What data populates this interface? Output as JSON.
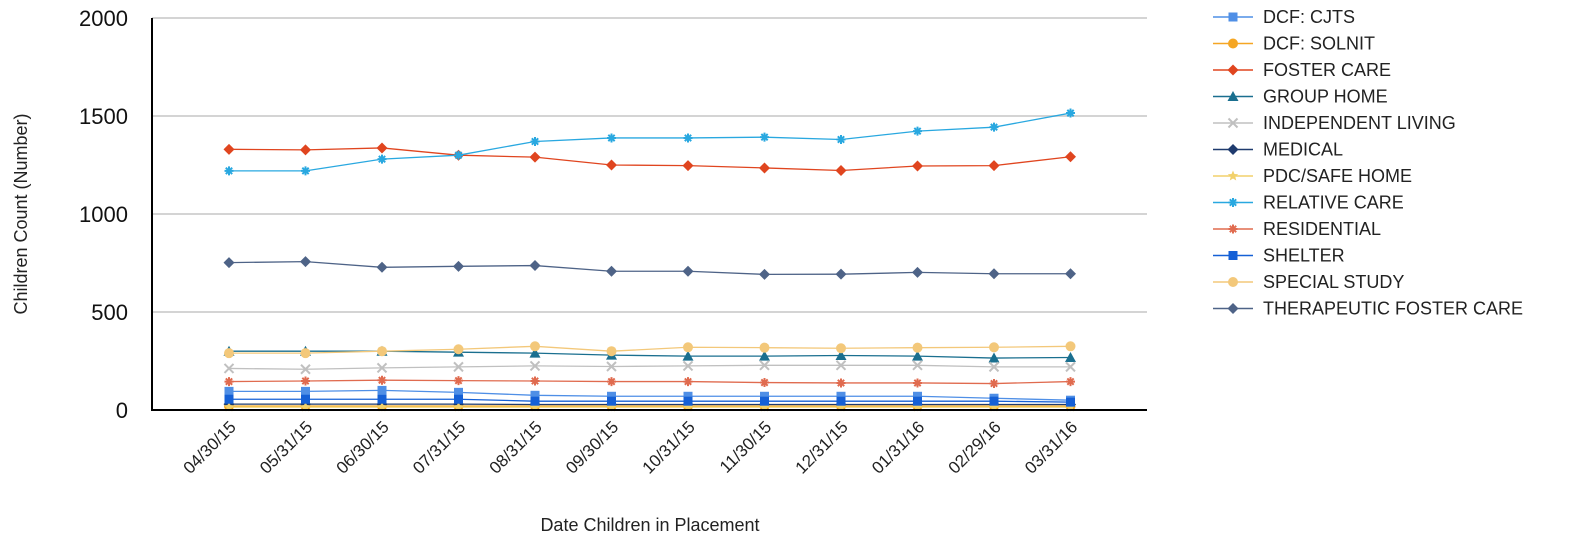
{
  "chart_data": {
    "type": "line",
    "xlabel": "Date Children in Placement",
    "ylabel": "Children Count (Number)",
    "ylim": [
      0,
      2000
    ],
    "yticks": [
      0,
      500,
      1000,
      1500,
      2000
    ],
    "grid": true,
    "legend_position": "right",
    "categories": [
      "04/30/15",
      "05/31/15",
      "06/30/15",
      "07/31/15",
      "08/31/15",
      "09/30/15",
      "10/31/15",
      "11/30/15",
      "12/31/15",
      "01/31/16",
      "02/29/16",
      "03/31/16"
    ],
    "series": [
      {
        "name": "DCF: CJTS",
        "color": "#4f8fe6",
        "marker": "square",
        "values": [
          95,
          95,
          100,
          90,
          75,
          70,
          70,
          70,
          70,
          70,
          60,
          50
        ]
      },
      {
        "name": "DCF: SOLNIT",
        "color": "#f5a623",
        "marker": "circle",
        "values": [
          20,
          20,
          20,
          20,
          20,
          20,
          20,
          20,
          20,
          20,
          20,
          20
        ]
      },
      {
        "name": "FOSTER CARE",
        "color": "#e0451f",
        "marker": "diamond",
        "values": [
          1330,
          1327,
          1337,
          1300,
          1290,
          1250,
          1247,
          1235,
          1222,
          1245,
          1247,
          1292
        ]
      },
      {
        "name": "GROUP HOME",
        "color": "#1a6f8f",
        "marker": "triangle",
        "values": [
          300,
          300,
          300,
          295,
          290,
          280,
          275,
          275,
          278,
          275,
          265,
          268
        ]
      },
      {
        "name": "INDEPENDENT LIVING",
        "color": "#c0c0c0",
        "marker": "x",
        "values": [
          212,
          208,
          215,
          220,
          225,
          222,
          225,
          228,
          228,
          228,
          220,
          220
        ]
      },
      {
        "name": "MEDICAL",
        "color": "#1f3b6e",
        "marker": "diamond",
        "values": [
          30,
          30,
          30,
          30,
          28,
          28,
          28,
          28,
          28,
          28,
          28,
          28
        ]
      },
      {
        "name": "PDC/SAFE HOME",
        "color": "#f2d16b",
        "marker": "star",
        "values": [
          15,
          15,
          15,
          15,
          15,
          15,
          15,
          15,
          15,
          15,
          15,
          15
        ]
      },
      {
        "name": "RELATIVE CARE",
        "color": "#29a8e0",
        "marker": "asterisk",
        "values": [
          1220,
          1220,
          1280,
          1300,
          1370,
          1388,
          1388,
          1392,
          1380,
          1423,
          1443,
          1515
        ]
      },
      {
        "name": "RESIDENTIAL",
        "color": "#e06b4f",
        "marker": "asterisk",
        "values": [
          145,
          148,
          152,
          150,
          148,
          145,
          145,
          140,
          138,
          138,
          135,
          145
        ]
      },
      {
        "name": "SHELTER",
        "color": "#1560d6",
        "marker": "square",
        "values": [
          55,
          55,
          55,
          55,
          45,
          45,
          45,
          45,
          45,
          45,
          45,
          40
        ]
      },
      {
        "name": "SPECIAL STUDY",
        "color": "#f3c87a",
        "marker": "circle",
        "values": [
          290,
          290,
          300,
          310,
          325,
          300,
          320,
          318,
          315,
          318,
          320,
          325
        ]
      },
      {
        "name": "THERAPEUTIC FOSTER CARE",
        "color": "#4e6387",
        "marker": "diamond",
        "values": [
          752,
          757,
          728,
          733,
          737,
          708,
          708,
          692,
          693,
          702,
          695,
          695
        ]
      }
    ]
  }
}
